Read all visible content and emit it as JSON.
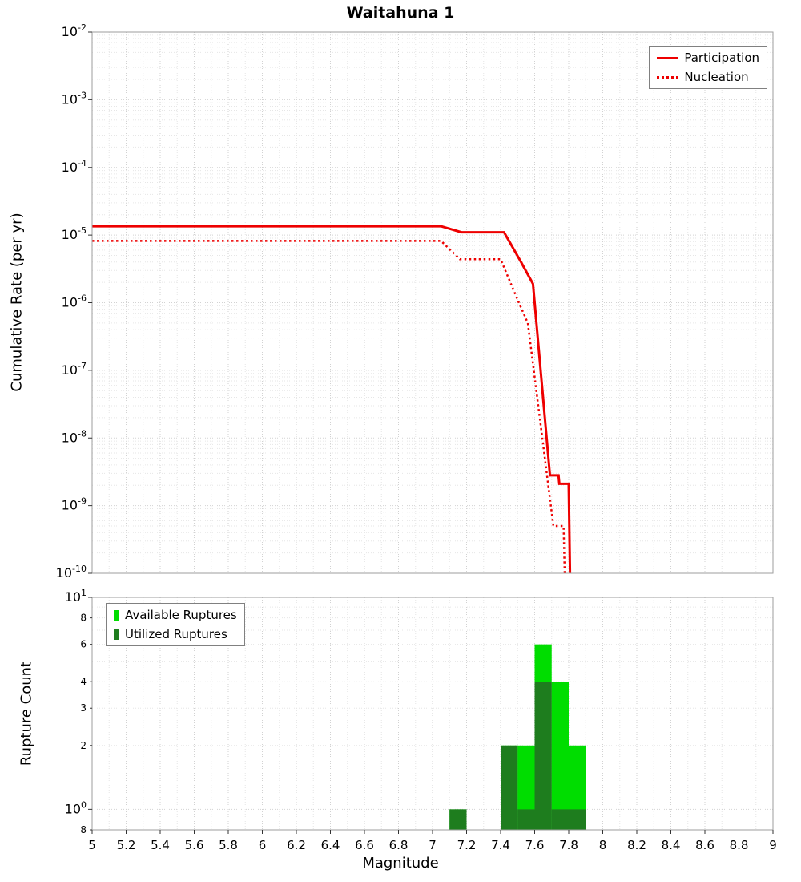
{
  "chart_data": [
    {
      "type": "line",
      "panel": "top",
      "title": "Waitahuna 1",
      "ylabel": "Cumulative Rate (per yr)",
      "xlim": [
        5,
        9
      ],
      "yscale": "log",
      "ylog_exponent_range": [
        -10,
        -2
      ],
      "grid": true,
      "legend_position": "top-right",
      "y_tick_exponents": [
        -2,
        -3,
        -4,
        -5,
        -6,
        -7,
        -8,
        -9,
        -10
      ],
      "series": [
        {
          "name": "Participation",
          "color": "#ee0000",
          "line_style": "solid",
          "points": [
            [
              5.0,
              1.35e-05
            ],
            [
              7.05,
              1.35e-05
            ],
            [
              7.17,
              1.1e-05
            ],
            [
              7.42,
              1.1e-05
            ],
            [
              7.52,
              4e-06
            ],
            [
              7.59,
              1.9e-06
            ],
            [
              7.69,
              2.8e-09
            ],
            [
              7.74,
              2.8e-09
            ],
            [
              7.745,
              2.1e-09
            ],
            [
              7.8,
              2.1e-09
            ],
            [
              7.81,
              4e-11
            ]
          ]
        },
        {
          "name": "Nucleation",
          "color": "#ee0000",
          "line_style": "dotted",
          "points": [
            [
              5.0,
              8.2e-06
            ],
            [
              7.05,
              8.2e-06
            ],
            [
              7.16,
              4.4e-06
            ],
            [
              7.4,
              4.4e-06
            ],
            [
              7.5,
              1.1e-06
            ],
            [
              7.56,
              5e-07
            ],
            [
              7.71,
              5e-10
            ],
            [
              7.77,
              5e-10
            ],
            [
              7.78,
              4e-11
            ]
          ]
        }
      ]
    },
    {
      "type": "bar",
      "panel": "bottom",
      "ylabel": "Rupture Count",
      "xlabel": "Magnitude",
      "xlim": [
        5,
        9
      ],
      "ylim": [
        0.8,
        10
      ],
      "yscale": "log",
      "bar_width": 0.1,
      "grid": true,
      "legend_position": "top-left",
      "y_ticks": [
        {
          "value": 10,
          "label": "10",
          "exponent": "1",
          "major": true
        },
        {
          "value": 8,
          "label": "8",
          "major": false
        },
        {
          "value": 6,
          "label": "6",
          "major": false
        },
        {
          "value": 4,
          "label": "4",
          "major": false
        },
        {
          "value": 3,
          "label": "3",
          "major": false
        },
        {
          "value": 2,
          "label": "2",
          "major": false
        },
        {
          "value": 1,
          "label": "10",
          "exponent": "0",
          "major": true
        },
        {
          "value": 0.8,
          "label": "8",
          "major": false
        }
      ],
      "x_ticks": [
        {
          "value": 5,
          "label": "5"
        },
        {
          "value": 5.2,
          "label": "5.2"
        },
        {
          "value": 5.4,
          "label": "5.4"
        },
        {
          "value": 5.6,
          "label": "5.6"
        },
        {
          "value": 5.8,
          "label": "5.8"
        },
        {
          "value": 6,
          "label": "6"
        },
        {
          "value": 6.2,
          "label": "6.2"
        },
        {
          "value": 6.4,
          "label": "6.4"
        },
        {
          "value": 6.6,
          "label": "6.6"
        },
        {
          "value": 6.8,
          "label": "6.8"
        },
        {
          "value": 7,
          "label": "7"
        },
        {
          "value": 7.2,
          "label": "7.2"
        },
        {
          "value": 7.4,
          "label": "7.4"
        },
        {
          "value": 7.6,
          "label": "7.6"
        },
        {
          "value": 7.8,
          "label": "7.8"
        },
        {
          "value": 8,
          "label": "8"
        },
        {
          "value": 8.2,
          "label": "8.2"
        },
        {
          "value": 8.4,
          "label": "8.4"
        },
        {
          "value": 8.6,
          "label": "8.6"
        },
        {
          "value": 8.8,
          "label": "8.8"
        },
        {
          "value": 9,
          "label": "9"
        }
      ],
      "series": [
        {
          "name": "Available Ruptures",
          "color": "#00dd00",
          "bins": [
            {
              "mag": 7.15,
              "count": 1
            },
            {
              "mag": 7.45,
              "count": 2
            },
            {
              "mag": 7.55,
              "count": 2
            },
            {
              "mag": 7.65,
              "count": 6
            },
            {
              "mag": 7.75,
              "count": 4
            },
            {
              "mag": 7.85,
              "count": 2
            }
          ]
        },
        {
          "name": "Utilized Ruptures",
          "color": "#1e7d1e",
          "bins": [
            {
              "mag": 7.15,
              "count": 1
            },
            {
              "mag": 7.45,
              "count": 2
            },
            {
              "mag": 7.55,
              "count": 1
            },
            {
              "mag": 7.65,
              "count": 4
            },
            {
              "mag": 7.75,
              "count": 1
            },
            {
              "mag": 7.85,
              "count": 1
            }
          ]
        }
      ]
    }
  ],
  "colors": {
    "line_red": "#ee0000",
    "available_green": "#00dd00",
    "utilized_green": "#1e7d1e",
    "grid_minor": "#e6e6e6",
    "grid_major": "#d2d2d2",
    "axis_border": "#9e9e9e",
    "tick_mark": "#333333"
  }
}
